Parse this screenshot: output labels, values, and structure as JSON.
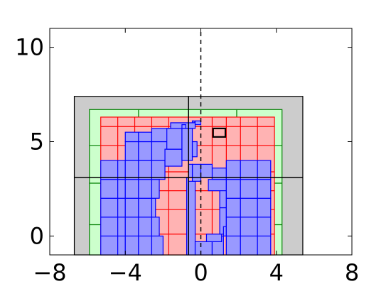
{
  "chart_data": {
    "type": "other",
    "xlim": [
      -8,
      8
    ],
    "ylim": [
      -1,
      11
    ],
    "xticks": [
      -8,
      -4,
      0,
      4,
      8
    ],
    "xtick_labels": [
      "−8",
      "−4",
      "0",
      "4",
      "8"
    ],
    "yticks": [
      0,
      5,
      10
    ],
    "ytick_labels": [
      "0",
      "5",
      "10"
    ],
    "grid": false,
    "colors": {
      "gray_fill": "#cccccc",
      "green_fill": "#ccffcc",
      "green_edge": "#007f00",
      "red_fill": "#ffb3b3",
      "red_edge": "#ff0000",
      "blue_fill": "#9999ff",
      "blue_edge": "#0000ff",
      "axis": "#000000"
    },
    "gray_box": [
      -6.7,
      -1.0,
      5.4,
      7.4
    ],
    "gray_dividers": {
      "x": -0.65,
      "y": 3.1
    },
    "green_box": [
      -5.9,
      -1.0,
      4.3,
      6.7
    ],
    "green_vlines": [
      -3.3,
      -0.65,
      1.9
    ],
    "green_hlines": [
      0.6,
      2.8,
      4.8
    ],
    "red_box": [
      -5.3,
      -1.0,
      3.9,
      6.3
    ],
    "red_vlines": [
      -4.4,
      -3.5,
      -2.6,
      -1.7,
      -0.65,
      0.6,
      1.35,
      2.1,
      3.0
    ],
    "red_hlines": [
      0.1,
      1.4,
      2.4,
      3.4,
      4.8,
      5.8
    ],
    "dashed_vline_x": 0,
    "small_box": [
      0.65,
      5.25,
      1.3,
      5.7
    ],
    "blue_cells": [
      [
        -5.3,
        -1.0,
        -4.4,
        0.0
      ],
      [
        -5.3,
        0.0,
        -4.4,
        1.0
      ],
      [
        -5.3,
        1.0,
        -4.4,
        2.0
      ],
      [
        -5.3,
        2.0,
        -4.4,
        3.0
      ],
      [
        -5.3,
        3.0,
        -4.4,
        4.0
      ],
      [
        -4.4,
        -1.0,
        -4.0,
        0.0
      ],
      [
        -4.4,
        0.0,
        -4.0,
        1.0
      ],
      [
        -4.4,
        1.0,
        -4.0,
        2.0
      ],
      [
        -4.4,
        2.0,
        -4.0,
        3.0
      ],
      [
        -4.4,
        3.0,
        -4.0,
        4.0
      ],
      [
        -4.0,
        -1.0,
        -3.3,
        0.0
      ],
      [
        -4.0,
        0.0,
        -3.3,
        1.0
      ],
      [
        -4.0,
        1.0,
        -3.3,
        2.0
      ],
      [
        -4.0,
        2.0,
        -3.3,
        3.0
      ],
      [
        -4.0,
        3.0,
        -3.3,
        4.0
      ],
      [
        -4.0,
        4.0,
        -3.3,
        5.0
      ],
      [
        -4.0,
        5.0,
        -3.3,
        5.5
      ],
      [
        -3.3,
        -1.0,
        -2.6,
        0.0
      ],
      [
        -3.3,
        0.0,
        -2.6,
        1.0
      ],
      [
        -3.3,
        1.0,
        -2.6,
        2.0
      ],
      [
        -3.3,
        2.0,
        -2.6,
        3.0
      ],
      [
        -3.3,
        3.0,
        -2.6,
        4.0
      ],
      [
        -3.3,
        4.0,
        -2.6,
        5.0
      ],
      [
        -3.3,
        5.0,
        -2.6,
        5.5
      ],
      [
        -2.6,
        -1.0,
        -2.0,
        0.0
      ],
      [
        -2.6,
        0.0,
        -2.2,
        1.0
      ],
      [
        -2.6,
        1.0,
        -2.4,
        2.0
      ],
      [
        -2.6,
        2.0,
        -2.2,
        3.0
      ],
      [
        -2.6,
        3.0,
        -1.9,
        4.0
      ],
      [
        -2.6,
        4.0,
        -1.8,
        5.0
      ],
      [
        -2.6,
        5.0,
        -1.6,
        5.7
      ],
      [
        -1.9,
        3.7,
        -1.0,
        4.6
      ],
      [
        -1.8,
        4.6,
        -1.0,
        5.7
      ],
      [
        -1.6,
        5.7,
        -0.3,
        6.0
      ],
      [
        -1.0,
        5.7,
        -0.8,
        5.9
      ],
      [
        -1.0,
        4.0,
        -0.45,
        5.7
      ],
      [
        -0.45,
        4.2,
        -0.2,
        5.0
      ],
      [
        -0.3,
        5.9,
        0.0,
        6.1
      ],
      [
        -0.45,
        6.0,
        -0.35,
        6.1
      ],
      [
        -0.75,
        -1.0,
        -0.65,
        3.1
      ],
      [
        -0.65,
        -1.0,
        -0.3,
        2.9
      ],
      [
        -0.3,
        -1.0,
        0.6,
        -0.3
      ],
      [
        0.6,
        -1.0,
        1.2,
        0.0
      ],
      [
        0.3,
        -0.3,
        1.1,
        0.1
      ],
      [
        1.0,
        0.1,
        1.35,
        1.5
      ],
      [
        1.2,
        0.0,
        1.35,
        0.5
      ],
      [
        1.0,
        1.5,
        1.35,
        2.5
      ],
      [
        0.4,
        2.4,
        1.35,
        3.0
      ],
      [
        0.6,
        3.0,
        1.35,
        3.6
      ],
      [
        -0.45,
        2.9,
        0.0,
        3.8
      ],
      [
        0.0,
        3.1,
        0.6,
        3.8
      ],
      [
        -0.65,
        3.1,
        -0.45,
        3.8
      ],
      [
        1.35,
        -1.0,
        2.1,
        0.0
      ],
      [
        1.35,
        0.0,
        2.1,
        1.0
      ],
      [
        1.35,
        1.0,
        2.1,
        2.0
      ],
      [
        1.35,
        2.0,
        2.1,
        3.0
      ],
      [
        1.35,
        3.0,
        2.1,
        4.0
      ],
      [
        2.1,
        -1.0,
        3.0,
        0.0
      ],
      [
        2.1,
        0.0,
        3.0,
        1.0
      ],
      [
        2.1,
        1.0,
        3.0,
        2.0
      ],
      [
        2.1,
        2.0,
        3.0,
        3.0
      ],
      [
        2.1,
        3.0,
        3.0,
        4.0
      ],
      [
        3.0,
        -1.0,
        3.7,
        0.0
      ],
      [
        3.0,
        0.0,
        3.7,
        1.0
      ],
      [
        3.0,
        1.0,
        3.7,
        2.0
      ],
      [
        3.0,
        2.0,
        3.7,
        3.0
      ],
      [
        3.0,
        3.0,
        3.7,
        4.0
      ]
    ]
  }
}
